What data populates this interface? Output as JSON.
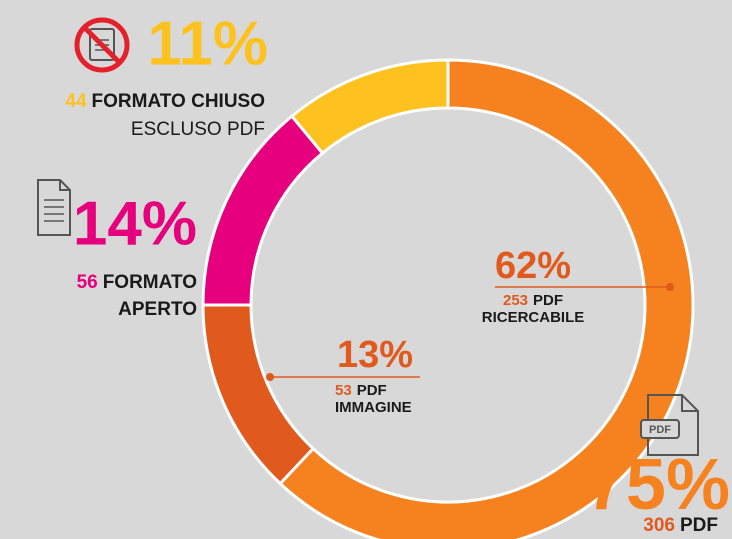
{
  "chart_data": {
    "type": "donut",
    "categories": [
      [
        "PDF",
        "RICERCABILE"
      ],
      [
        "PDF",
        "IMMAGINE"
      ],
      [
        "FORMATO",
        "APERTO"
      ],
      [
        "FORMATO CHIUSO",
        "ESCLUSO PDF"
      ]
    ],
    "values": [
      62,
      13,
      14,
      11
    ],
    "value_labels": [
      "62%",
      "13%",
      "14%",
      "11%"
    ],
    "counts": [
      253,
      53,
      56,
      44
    ],
    "colors": [
      "#f5821f",
      "#e05a1e",
      "#e6007e",
      "#fdc220"
    ],
    "total_value": 75,
    "total_label": "75%",
    "total_count": 306,
    "total_name": "PDF",
    "pdf_icon_label": "PDF"
  }
}
